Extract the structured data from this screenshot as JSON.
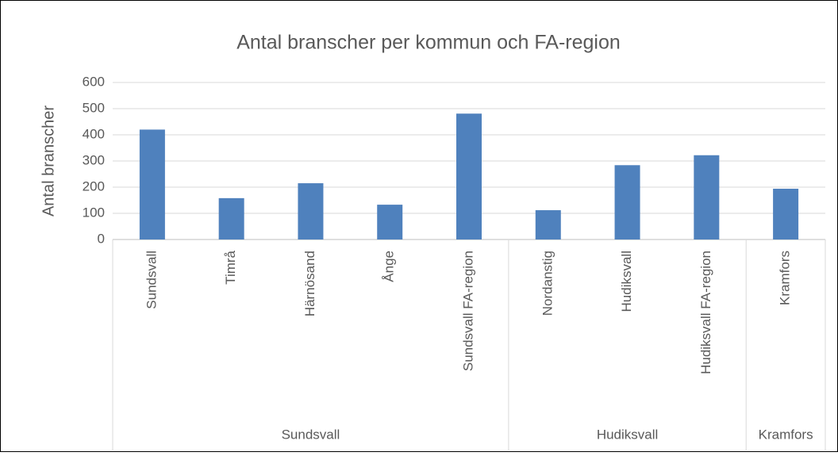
{
  "chart_data": {
    "type": "bar",
    "title": "Antal branscher per kommun och FA-region",
    "y_label": "Antal branscher",
    "groups": [
      {
        "name": "Sundsvall",
        "categories": [
          "Sundsvall",
          "Timrå",
          "Härnösand",
          "Ånge",
          "Sundsvall FA-region"
        ],
        "values": [
          420,
          158,
          215,
          133,
          481
        ]
      },
      {
        "name": "Hudiksvall",
        "categories": [
          "Nordanstig",
          "Hudiksvall",
          "Hudiksvall FA-region"
        ],
        "values": [
          112,
          284,
          322
        ]
      },
      {
        "name": "Kramfors",
        "categories": [
          "Kramfors"
        ],
        "values": [
          194
        ]
      }
    ],
    "color": "#4f81bd",
    "ylim": [
      0,
      600
    ],
    "yticks": [
      0,
      100,
      200,
      300,
      400,
      500,
      600
    ],
    "grid": true
  }
}
